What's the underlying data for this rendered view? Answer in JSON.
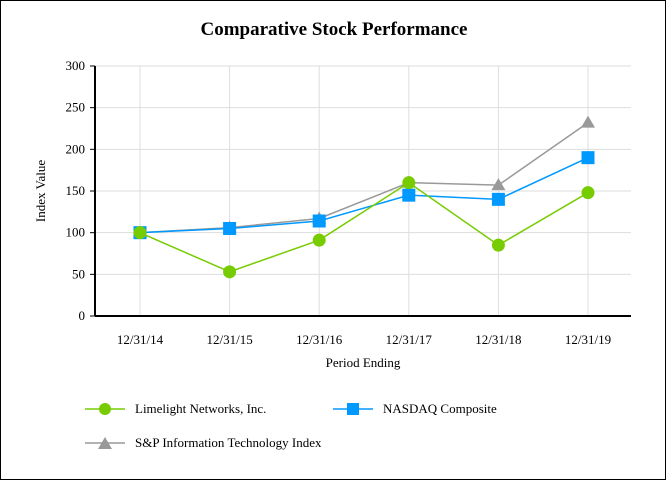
{
  "chart_data": {
    "type": "line",
    "title": "Comparative Stock Performance",
    "xlabel": "Period Ending",
    "ylabel": "Index Value",
    "categories": [
      "12/31/14",
      "12/31/15",
      "12/31/16",
      "12/31/17",
      "12/31/18",
      "12/31/19"
    ],
    "ylim": [
      0,
      300
    ],
    "yticks": [
      0,
      50,
      100,
      150,
      200,
      250,
      300
    ],
    "grid": true,
    "legend_placement": "bottom",
    "series": [
      {
        "name": "Limelight Networks, Inc.",
        "values": [
          100,
          53,
          91,
          160,
          85,
          148
        ],
        "color": "#77cc00",
        "marker": "circle"
      },
      {
        "name": "NASDAQ Composite",
        "values": [
          100,
          105,
          114,
          145,
          140,
          190
        ],
        "color": "#0099ff",
        "marker": "square"
      },
      {
        "name": "S&P Information Technology Index",
        "values": [
          100,
          106,
          117,
          160,
          157,
          232
        ],
        "color": "#999999",
        "marker": "triangle"
      }
    ]
  }
}
